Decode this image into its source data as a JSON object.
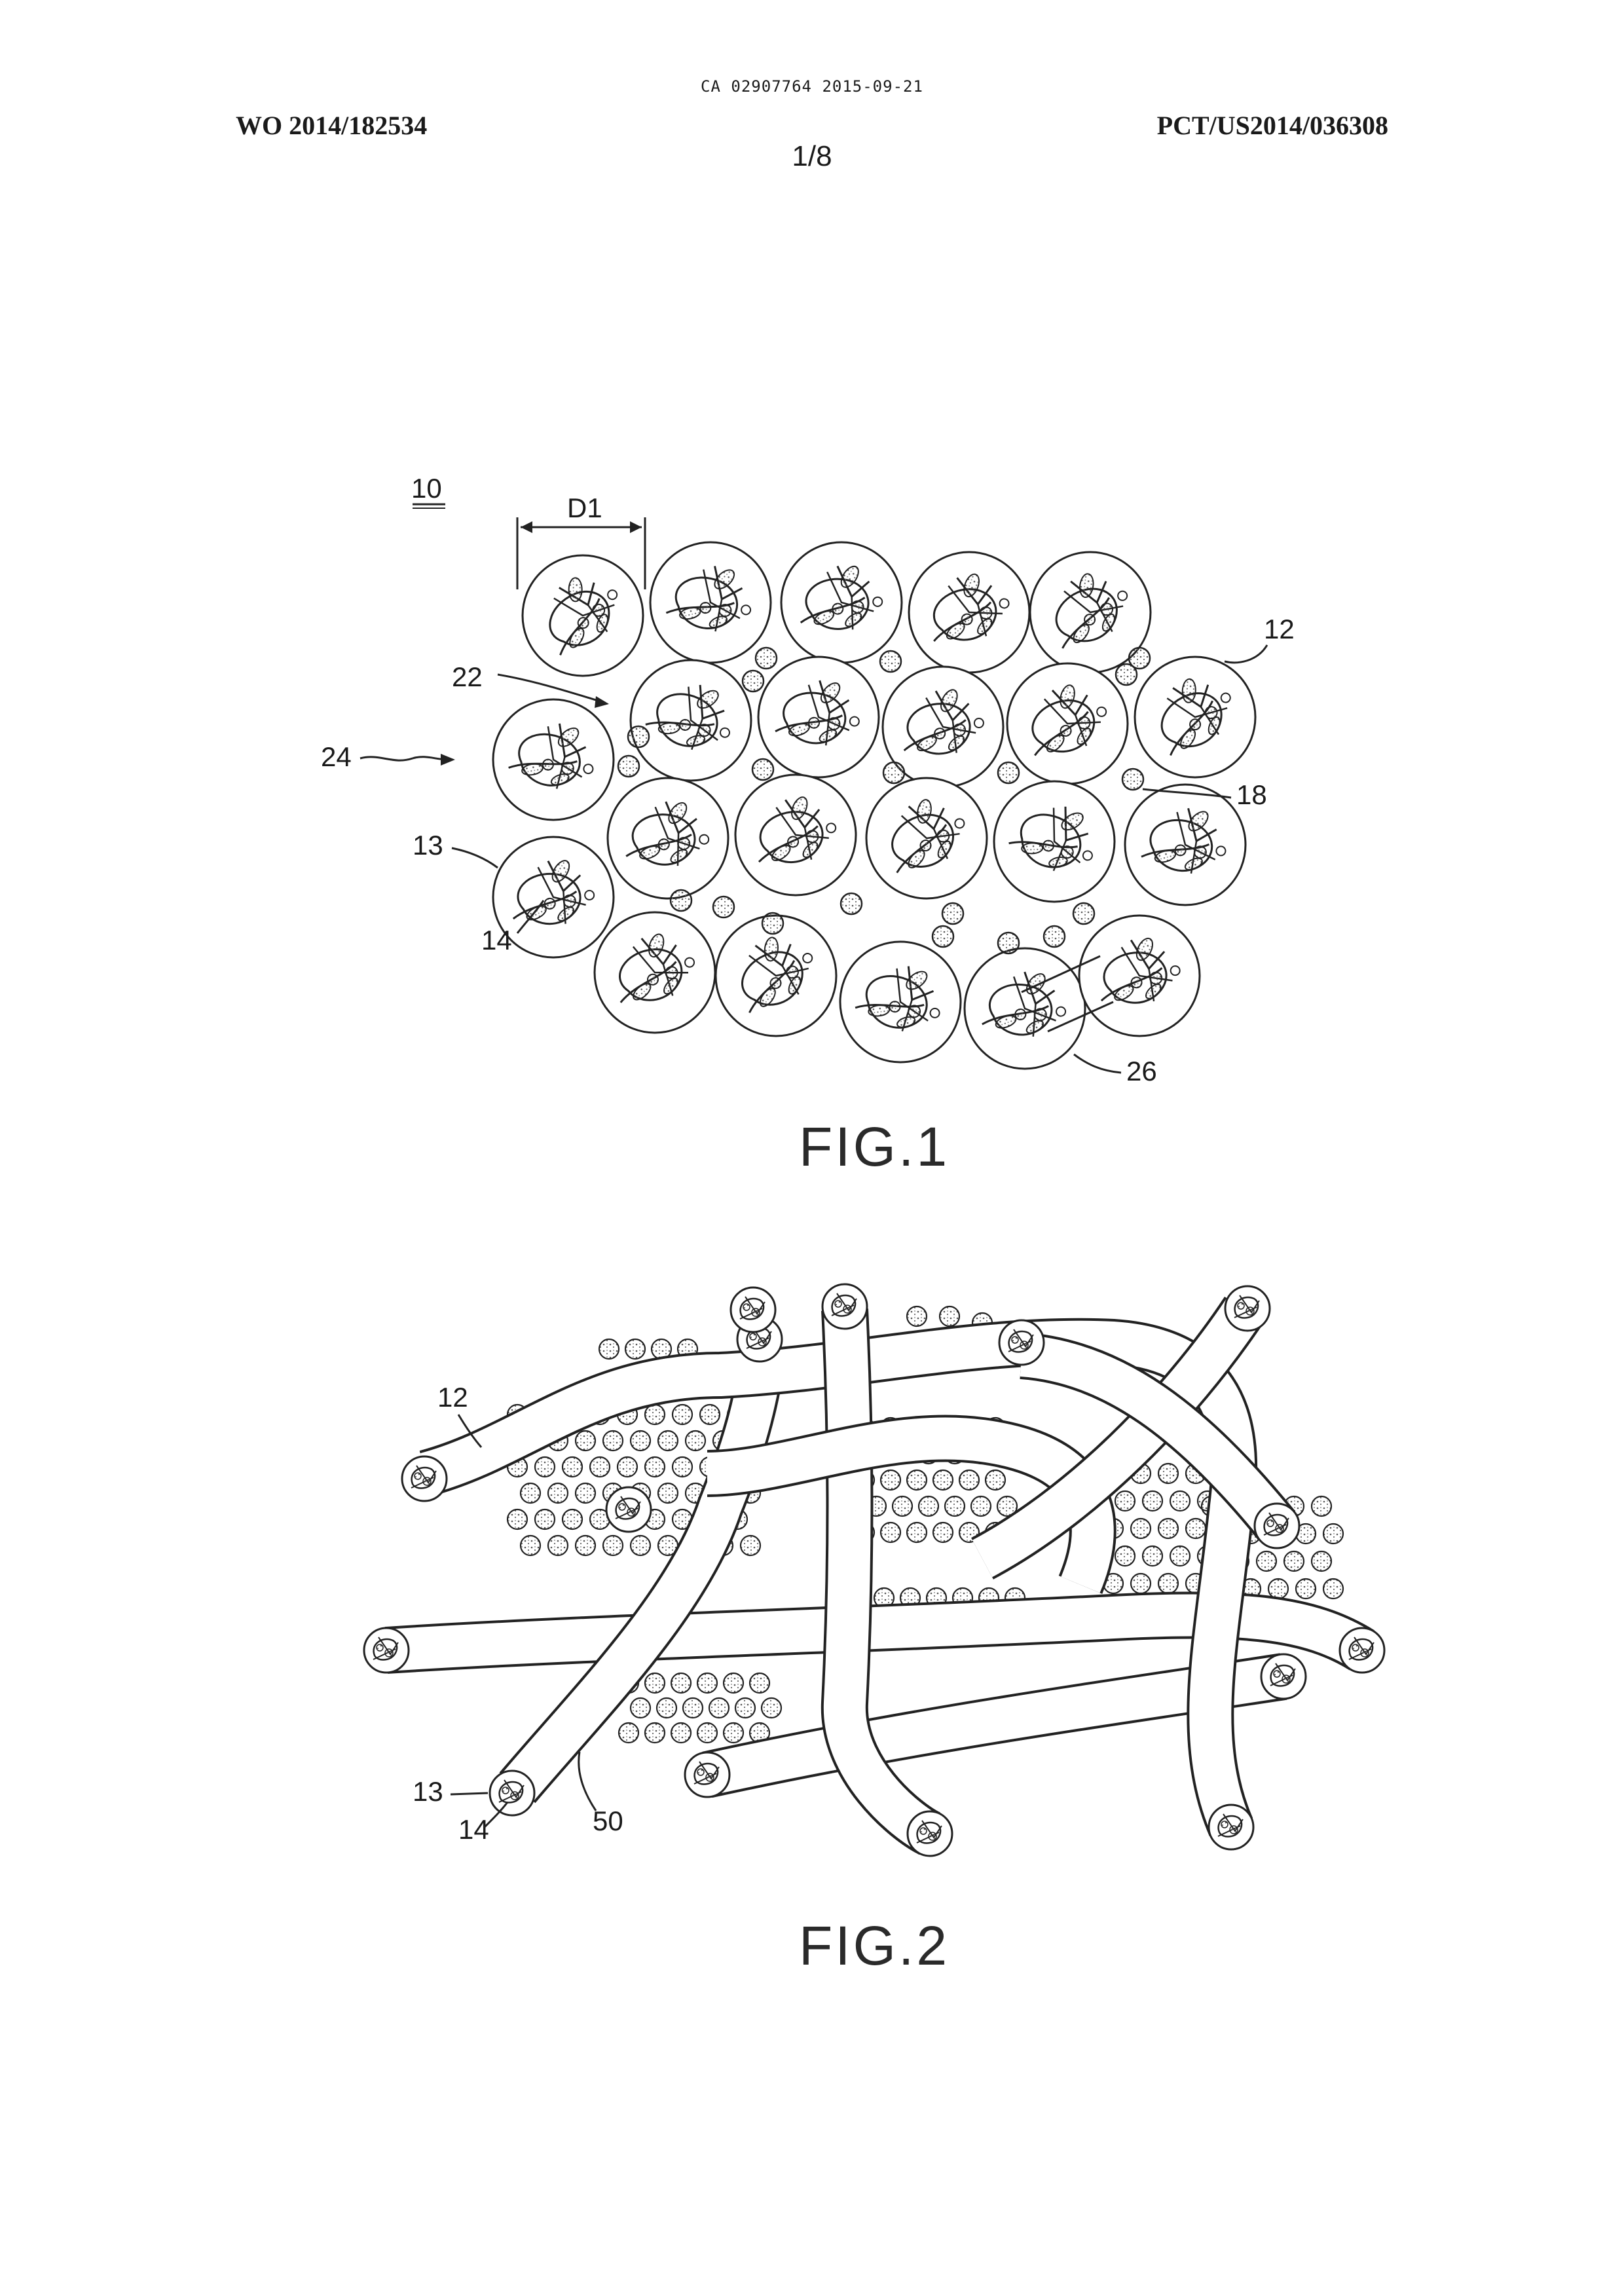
{
  "header": {
    "top_line": "CA 02907764 2015-09-21",
    "left": "WO 2014/182534",
    "right": "PCT/US2014/036308",
    "page": "1/8"
  },
  "figure1": {
    "caption": "FIG.1",
    "labels": {
      "ref10": "10",
      "d1": "D1",
      "ref12": "12",
      "ref22": "22",
      "ref24": "24",
      "ref18": "18",
      "ref13": "13",
      "ref14": "14",
      "ref26": "26"
    }
  },
  "figure2": {
    "caption": "FIG.2",
    "labels": {
      "ref12": "12",
      "ref13": "13",
      "ref14": "14",
      "ref50": "50"
    }
  }
}
